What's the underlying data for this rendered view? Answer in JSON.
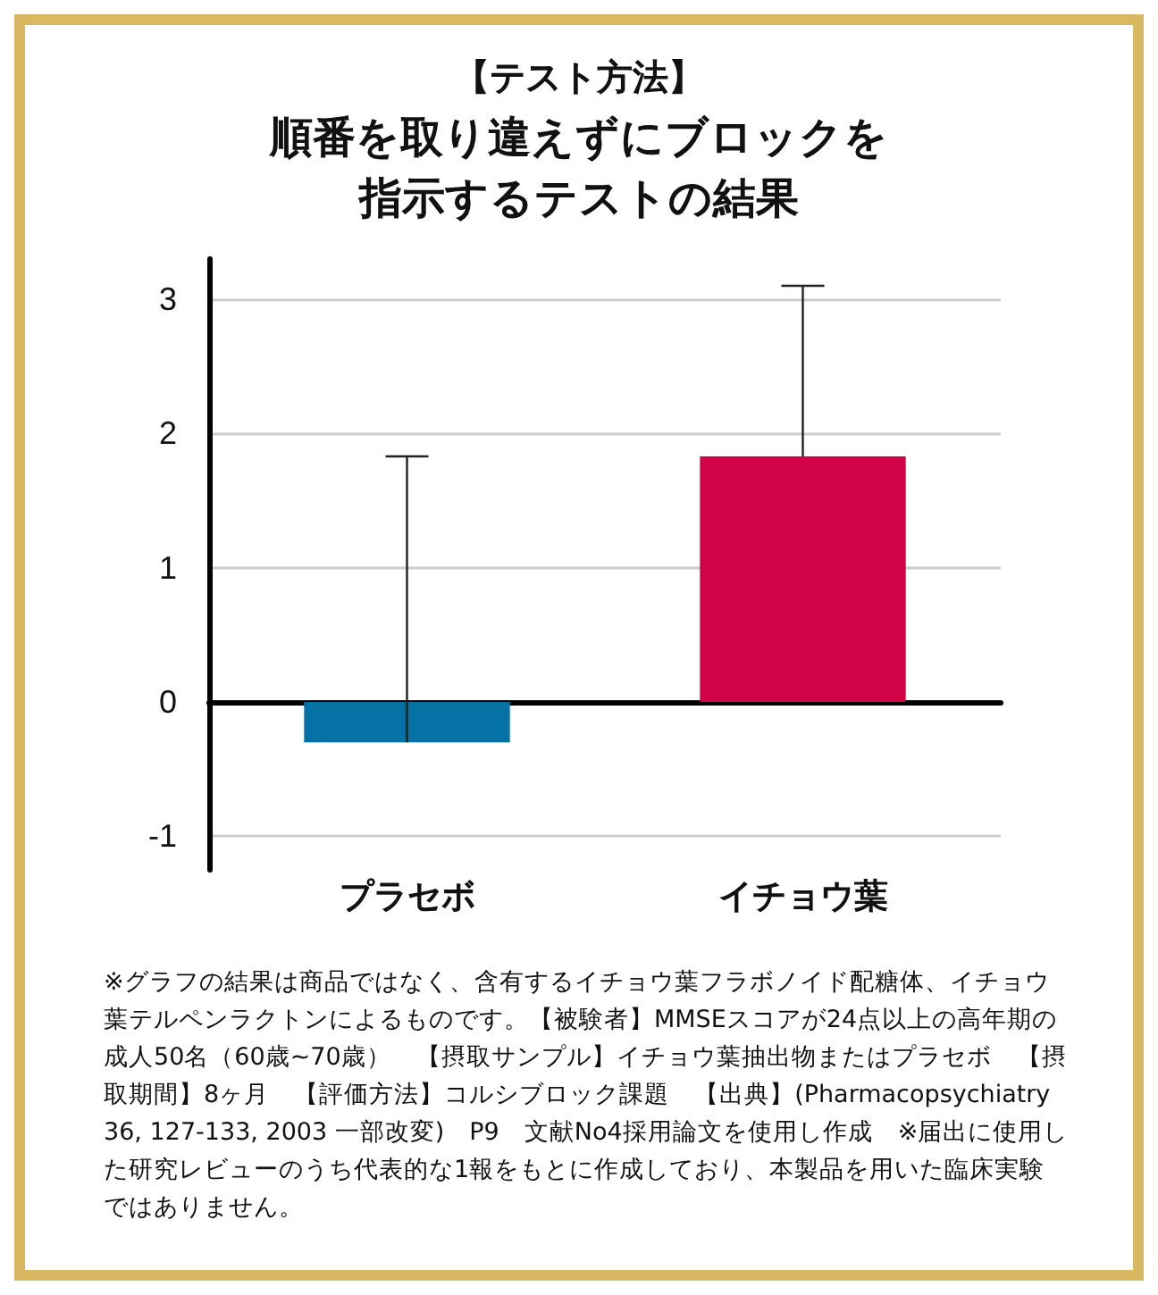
{
  "chart_data": {
    "type": "bar",
    "title": "【テスト方法】",
    "subtitle": "順番を取り違えずにブロックを指示するテストの結果",
    "categories": [
      "プラセボ",
      "イチョウ葉"
    ],
    "values": [
      -0.3,
      1.83
    ],
    "colors": [
      "#0572a6",
      "#d20246"
    ],
    "errors": [
      [
        -0.3,
        1.83
      ],
      [
        1.83,
        3.1
      ]
    ],
    "ylim": [
      -1.25,
      3.3
    ],
    "yticks": [
      -1,
      0,
      1,
      2,
      3
    ],
    "grid": "y",
    "annotations": [
      "※グラフの結果は商品ではなく、含有するイチョウ葉フラボノイド配糖体、イチョウ葉テルペンラクトンによるものです。【被験者】MMSEスコアが24点以上の高年期の成人50名（60歳~70歳）　【摂取サンプル】イチョウ葉抽出物またはプラセボ　【摂取期間】8ヶ月　【評価方法】コルシブロック課題　【出典】(Pharmacopsychiatry 36, 127-133, 2003 一部改変)　P9　文献No4採用論文を使用し作成　※届出に使用した研究レビューのうち代表的な1報をもとに作成しており、本製品を用いた臨床実験ではありません。"
    ]
  }
}
